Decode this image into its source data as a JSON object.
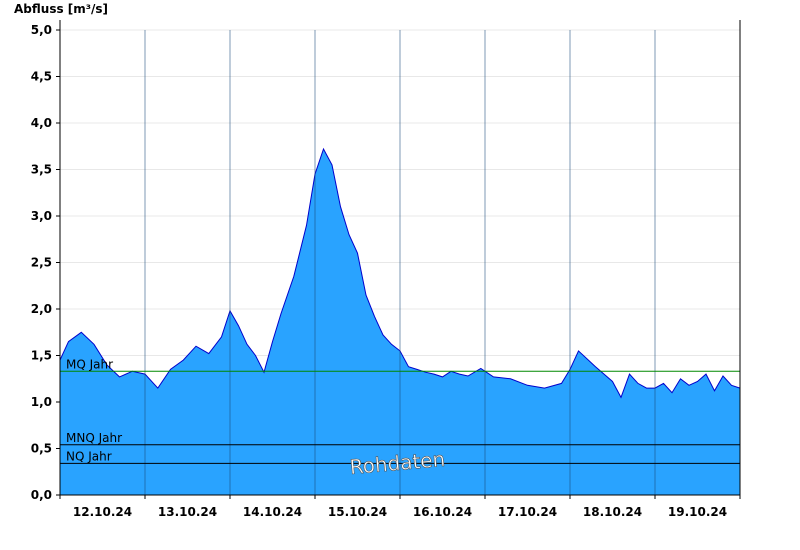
{
  "chart_data": {
    "type": "area",
    "title": "",
    "ylabel": "Abfluss [m³/s]",
    "xlabel": "",
    "ylim": [
      0,
      5.0
    ],
    "y_ticks": [
      "0,0",
      "0,5",
      "1,0",
      "1,5",
      "2,0",
      "2,5",
      "3,0",
      "3,5",
      "4,0",
      "4,5",
      "5,0"
    ],
    "x_tick_labels": [
      "12.10.24",
      "13.10.24",
      "14.10.24",
      "15.10.24",
      "16.10.24",
      "17.10.24",
      "18.10.24",
      "19.10.24"
    ],
    "x_range_days": [
      0,
      8
    ],
    "grid": true,
    "series": [
      {
        "fill_color": "#29a3ff",
        "line_color": "#0000cc",
        "x": [
          0.0,
          0.1,
          0.25,
          0.4,
          0.55,
          0.7,
          0.85,
          1.0,
          1.15,
          1.3,
          1.45,
          1.6,
          1.75,
          1.9,
          2.0,
          2.1,
          2.2,
          2.3,
          2.4,
          2.5,
          2.6,
          2.75,
          2.9,
          3.0,
          3.1,
          3.2,
          3.3,
          3.4,
          3.5,
          3.6,
          3.7,
          3.8,
          3.9,
          4.0,
          4.1,
          4.2,
          4.3,
          4.4,
          4.5,
          4.6,
          4.7,
          4.8,
          4.95,
          5.1,
          5.3,
          5.5,
          5.7,
          5.9,
          6.0,
          6.1,
          6.3,
          6.5,
          6.6,
          6.7,
          6.8,
          6.9,
          7.0,
          7.1,
          7.2,
          7.3,
          7.4,
          7.5,
          7.6,
          7.7,
          7.8,
          7.9,
          8.0
        ],
        "values": [
          1.45,
          1.65,
          1.75,
          1.62,
          1.4,
          1.27,
          1.33,
          1.3,
          1.15,
          1.35,
          1.45,
          1.6,
          1.52,
          1.7,
          1.98,
          1.82,
          1.62,
          1.5,
          1.32,
          1.65,
          1.95,
          2.35,
          2.9,
          3.45,
          3.72,
          3.55,
          3.1,
          2.8,
          2.6,
          2.15,
          1.92,
          1.72,
          1.62,
          1.55,
          1.38,
          1.35,
          1.32,
          1.3,
          1.27,
          1.33,
          1.3,
          1.28,
          1.36,
          1.27,
          1.25,
          1.18,
          1.15,
          1.2,
          1.35,
          1.55,
          1.38,
          1.22,
          1.05,
          1.3,
          1.2,
          1.15,
          1.15,
          1.2,
          1.1,
          1.25,
          1.18,
          1.22,
          1.3,
          1.12,
          1.28,
          1.18,
          1.15
        ]
      }
    ],
    "reference_lines": [
      {
        "label": "MQ Jahr",
        "value": 1.33,
        "color": "#008800"
      },
      {
        "label": "MNQ Jahr",
        "value": 0.54,
        "color": "#000000"
      },
      {
        "label": "NQ Jahr",
        "value": 0.34,
        "color": "#000000"
      }
    ],
    "watermark": "Rohdaten"
  }
}
